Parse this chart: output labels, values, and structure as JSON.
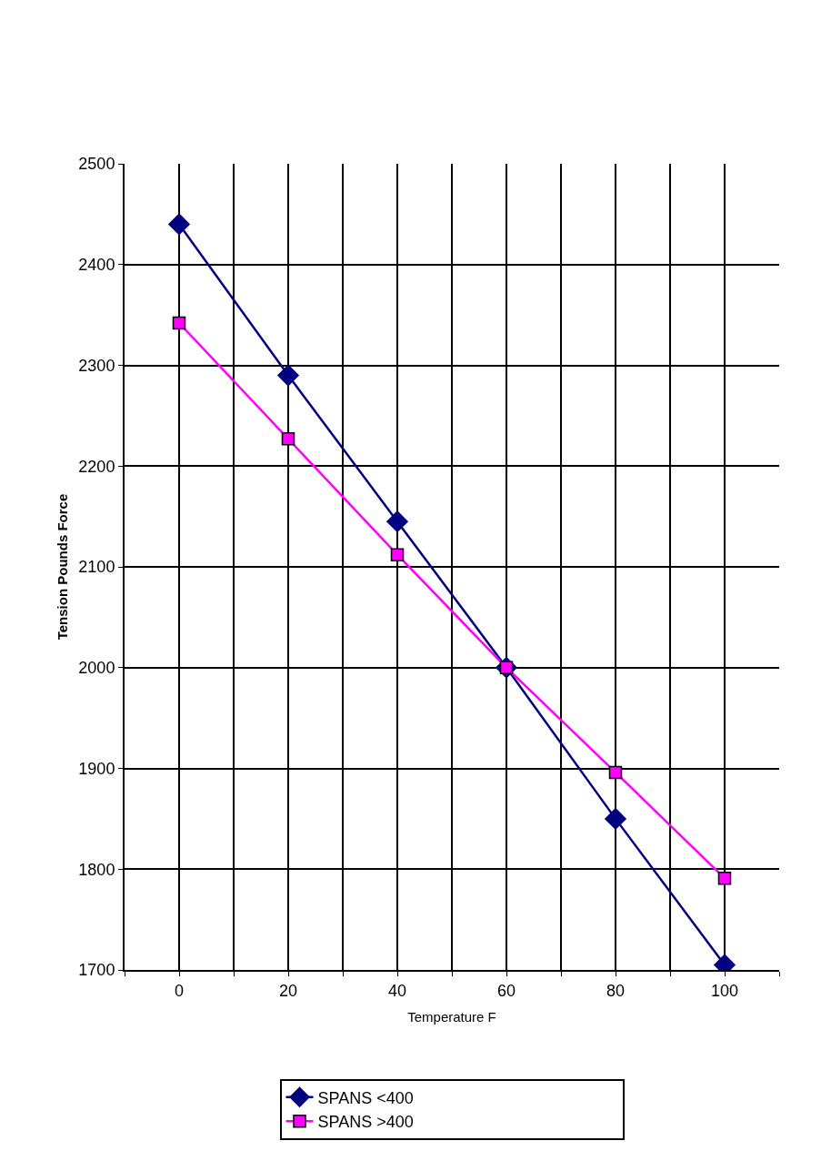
{
  "chart_data": {
    "type": "line",
    "xlabel": "Temperature F",
    "ylabel": "Tension Pounds Force",
    "x": [
      0,
      20,
      40,
      60,
      80,
      100
    ],
    "series": [
      {
        "name": "SPANS <400",
        "color": "#000080",
        "marker": "diamond",
        "values": [
          2440,
          2290,
          2145,
          2000,
          1850,
          1705
        ]
      },
      {
        "name": "SPANS >400",
        "color": "#ff00ff",
        "marker": "square",
        "values": [
          2342,
          2227,
          2112,
          2000,
          1896,
          1791
        ]
      }
    ],
    "xlim": [
      -10,
      110
    ],
    "xticks": [
      {
        "value": -10,
        "label": null
      },
      0,
      {
        "value": 10,
        "label": null
      },
      20,
      {
        "value": 30,
        "label": null
      },
      40,
      {
        "value": 50,
        "label": null
      },
      60,
      {
        "value": 70,
        "label": null
      },
      80,
      {
        "value": 90,
        "label": null
      },
      100,
      {
        "value": 110,
        "label": null
      }
    ],
    "ylim": [
      1700,
      2500
    ],
    "yticks": [
      1700,
      1800,
      1900,
      2000,
      2100,
      2200,
      2300,
      2400,
      2500
    ],
    "grid": true,
    "legend": "bottom",
    "line_style": "solid"
  }
}
